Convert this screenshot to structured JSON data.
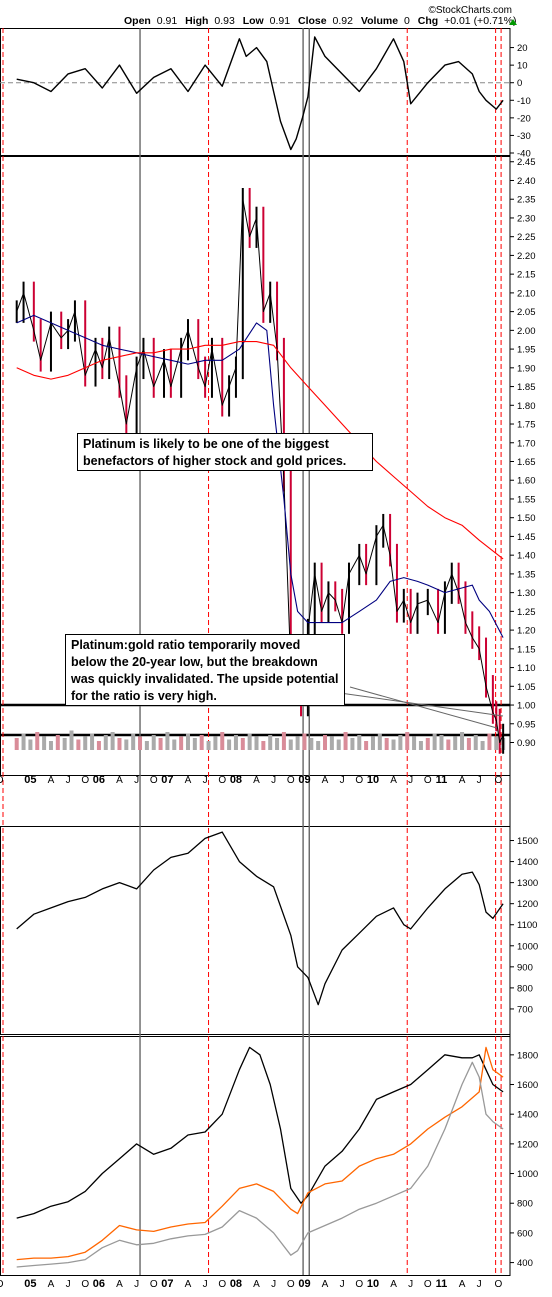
{
  "header": {
    "brand": "©StockCharts.com",
    "open_label": "Open",
    "open": "0.91",
    "high_label": "High",
    "high": "0.93",
    "low_label": "Low",
    "low": "0.91",
    "close_label": "Close",
    "close": "0.92",
    "volume_label": "Volume",
    "volume": "0",
    "chg_label": "Chg",
    "chg": "+0.01 (+0.71%)"
  },
  "annotations": {
    "note1": "Platinum is likely to be one of the biggest benefactors of higher stock and gold prices.",
    "note2": "Platinum:gold ratio temporarily moved below the 20-year low, but the breakdown was quickly invalidated. The upside potential for the ratio is very high."
  },
  "colors": {
    "price_up": "#000000",
    "price_down": "#cc0033",
    "ma_short": "#000080",
    "ma_long": "#ff0000",
    "gold": "#ff6600",
    "silver": "#999999",
    "vline_gray": "#666666",
    "vline_red": "#ff0000"
  },
  "chart_data": [
    {
      "type": "line",
      "panel": "momentum",
      "ylim": [
        -40,
        30
      ],
      "yticks": [
        20,
        10,
        0,
        -10,
        -20,
        -30,
        -40
      ],
      "x": [
        2004.75,
        2005.0,
        2005.25,
        2005.5,
        2005.75,
        2006.0,
        2006.25,
        2006.5,
        2006.75,
        2007.0,
        2007.25,
        2007.5,
        2007.75,
        2008.0,
        2008.1,
        2008.25,
        2008.4,
        2008.5,
        2008.6,
        2008.75,
        2008.83,
        2008.92,
        2009.0,
        2009.1,
        2009.25,
        2009.5,
        2009.75,
        2010.0,
        2010.25,
        2010.4,
        2010.5,
        2010.75,
        2011.0,
        2011.2,
        2011.4,
        2011.5,
        2011.6,
        2011.75,
        2011.85
      ],
      "values": [
        2,
        0,
        -5,
        5,
        8,
        -3,
        10,
        -6,
        3,
        8,
        -5,
        10,
        -2,
        25,
        15,
        20,
        12,
        -5,
        -22,
        -38,
        -32,
        -20,
        -8,
        26,
        15,
        5,
        -5,
        8,
        25,
        12,
        -12,
        0,
        10,
        12,
        5,
        -5,
        -10,
        -15,
        -10
      ]
    },
    {
      "type": "line",
      "panel": "price",
      "series_style": "bars",
      "ylim": [
        0.88,
        2.46
      ],
      "yticks": [
        2.45,
        2.4,
        2.35,
        2.3,
        2.25,
        2.2,
        2.15,
        2.1,
        2.05,
        2.0,
        1.95,
        1.9,
        1.85,
        1.8,
        1.75,
        1.7,
        1.65,
        1.6,
        1.55,
        1.5,
        1.45,
        1.4,
        1.35,
        1.3,
        1.25,
        1.2,
        1.15,
        1.1,
        1.05,
        1.0,
        0.95,
        0.9
      ],
      "x": [
        2004.75,
        2004.85,
        2005.0,
        2005.1,
        2005.25,
        2005.4,
        2005.5,
        2005.6,
        2005.75,
        2005.9,
        2006.0,
        2006.1,
        2006.25,
        2006.35,
        2006.5,
        2006.6,
        2006.75,
        2006.9,
        2007.0,
        2007.15,
        2007.25,
        2007.4,
        2007.5,
        2007.6,
        2007.75,
        2007.85,
        2007.95,
        2008.05,
        2008.15,
        2008.25,
        2008.35,
        2008.45,
        2008.55,
        2008.65,
        2008.75,
        2008.82,
        2008.9,
        2009.0,
        2009.1,
        2009.2,
        2009.3,
        2009.4,
        2009.5,
        2009.6,
        2009.75,
        2009.85,
        2010.0,
        2010.1,
        2010.2,
        2010.3,
        2010.4,
        2010.5,
        2010.6,
        2010.75,
        2010.9,
        2011.0,
        2011.1,
        2011.2,
        2011.3,
        2011.4,
        2011.5,
        2011.6,
        2011.7,
        2011.75,
        2011.8,
        2011.85
      ],
      "values": [
        2.05,
        2.1,
        2.0,
        1.92,
        2.02,
        1.98,
        2.0,
        2.05,
        1.88,
        1.95,
        1.9,
        1.98,
        1.85,
        1.75,
        1.9,
        1.95,
        1.85,
        1.92,
        1.85,
        1.95,
        2.0,
        1.9,
        1.85,
        1.95,
        1.8,
        1.85,
        1.9,
        2.35,
        2.25,
        2.3,
        2.05,
        2.1,
        1.95,
        1.6,
        1.1,
        1.05,
        1.0,
        1.2,
        1.35,
        1.25,
        1.3,
        1.28,
        1.22,
        1.35,
        1.4,
        1.35,
        1.45,
        1.48,
        1.4,
        1.25,
        1.28,
        1.22,
        1.27,
        1.28,
        1.22,
        1.3,
        1.35,
        1.3,
        1.22,
        1.18,
        1.15,
        1.05,
        0.98,
        0.96,
        0.9,
        0.92
      ]
    },
    {
      "type": "line",
      "panel": "price",
      "name": "short-ma",
      "x": [
        2004.75,
        2005.0,
        2005.25,
        2005.5,
        2005.75,
        2006.0,
        2006.25,
        2006.5,
        2006.75,
        2007.0,
        2007.25,
        2007.5,
        2007.75,
        2008.0,
        2008.25,
        2008.4,
        2008.5,
        2008.65,
        2008.75,
        2008.85,
        2009.0,
        2009.25,
        2009.5,
        2009.75,
        2010.0,
        2010.2,
        2010.4,
        2010.6,
        2010.75,
        2011.0,
        2011.2,
        2011.4,
        2011.5,
        2011.65,
        2011.85
      ],
      "values": [
        2.02,
        2.04,
        2.02,
        2.0,
        1.98,
        1.96,
        1.95,
        1.94,
        1.93,
        1.92,
        1.91,
        1.92,
        1.92,
        1.95,
        2.02,
        2.0,
        1.8,
        1.55,
        1.35,
        1.25,
        1.22,
        1.22,
        1.22,
        1.25,
        1.28,
        1.33,
        1.34,
        1.33,
        1.32,
        1.3,
        1.31,
        1.32,
        1.28,
        1.25,
        1.18
      ]
    },
    {
      "type": "line",
      "panel": "price",
      "name": "long-ma",
      "x": [
        2004.75,
        2005.0,
        2005.25,
        2005.5,
        2005.75,
        2006.0,
        2006.25,
        2006.5,
        2006.75,
        2007.0,
        2007.25,
        2007.5,
        2007.75,
        2008.0,
        2008.25,
        2008.5,
        2008.75,
        2009.0,
        2009.25,
        2009.5,
        2009.75,
        2010.0,
        2010.25,
        2010.5,
        2010.75,
        2011.0,
        2011.25,
        2011.5,
        2011.85
      ],
      "values": [
        1.9,
        1.88,
        1.87,
        1.88,
        1.9,
        1.92,
        1.93,
        1.94,
        1.94,
        1.95,
        1.95,
        1.96,
        1.96,
        1.97,
        1.97,
        1.96,
        1.9,
        1.85,
        1.8,
        1.75,
        1.7,
        1.65,
        1.61,
        1.57,
        1.53,
        1.5,
        1.48,
        1.44,
        1.39
      ]
    },
    {
      "type": "bar",
      "panel": "volume",
      "ylim": [
        0,
        100
      ],
      "x": [
        2004.75,
        2004.85,
        2004.95,
        2005.05,
        2005.15,
        2005.25,
        2005.35,
        2005.45,
        2005.55,
        2005.65,
        2005.75,
        2005.85,
        2005.95,
        2006.05,
        2006.15,
        2006.25,
        2006.35,
        2006.45,
        2006.55,
        2006.65,
        2006.75,
        2006.85,
        2006.95,
        2007.05,
        2007.15,
        2007.25,
        2007.35,
        2007.45,
        2007.55,
        2007.65,
        2007.75,
        2007.85,
        2007.95,
        2008.05,
        2008.15,
        2008.25,
        2008.35,
        2008.45,
        2008.55,
        2008.65,
        2008.75,
        2008.85,
        2008.95,
        2009.05,
        2009.15,
        2009.25,
        2009.35,
        2009.45,
        2009.55,
        2009.65,
        2009.75,
        2009.85,
        2009.95,
        2010.05,
        2010.15,
        2010.25,
        2010.35,
        2010.45,
        2010.55,
        2010.65,
        2010.75,
        2010.85,
        2010.95,
        2011.05,
        2011.15,
        2011.25,
        2011.35,
        2011.45,
        2011.55,
        2011.65,
        2011.75,
        2011.85
      ],
      "values": [
        40,
        55,
        35,
        60,
        45,
        30,
        50,
        40,
        65,
        35,
        45,
        55,
        30,
        50,
        60,
        40,
        35,
        55,
        45,
        30,
        50,
        40,
        60,
        35,
        45,
        55,
        40,
        50,
        30,
        45,
        60,
        35,
        50,
        40,
        55,
        45,
        30,
        50,
        40,
        60,
        35,
        45,
        55,
        40,
        30,
        50,
        45,
        35,
        60,
        40,
        50,
        30,
        45,
        55,
        40,
        35,
        50,
        60,
        45,
        30,
        40,
        55,
        50,
        35,
        45,
        60,
        40,
        50,
        30,
        55,
        45,
        40
      ]
    },
    {
      "type": "line",
      "panel": "index",
      "ylim": [
        600,
        1550
      ],
      "yticks": [
        1500,
        1400,
        1300,
        1200,
        1100,
        1000,
        900,
        800,
        700
      ],
      "x": [
        2004.75,
        2005.0,
        2005.25,
        2005.5,
        2005.75,
        2006.0,
        2006.25,
        2006.5,
        2006.75,
        2007.0,
        2007.25,
        2007.5,
        2007.75,
        2008.0,
        2008.25,
        2008.5,
        2008.75,
        2008.85,
        2009.0,
        2009.15,
        2009.25,
        2009.5,
        2009.75,
        2010.0,
        2010.25,
        2010.4,
        2010.5,
        2010.75,
        2011.0,
        2011.25,
        2011.4,
        2011.5,
        2011.6,
        2011.7,
        2011.85
      ],
      "values": [
        1080,
        1150,
        1180,
        1210,
        1230,
        1270,
        1300,
        1270,
        1360,
        1420,
        1440,
        1510,
        1540,
        1400,
        1330,
        1280,
        1050,
        900,
        850,
        720,
        820,
        980,
        1060,
        1140,
        1180,
        1100,
        1080,
        1180,
        1270,
        1340,
        1350,
        1290,
        1160,
        1130,
        1200
      ]
    },
    {
      "type": "line",
      "panel": "metals",
      "ylim": [
        350,
        1900
      ],
      "yticks": [
        1800,
        1600,
        1400,
        1200,
        1000,
        800,
        600,
        400
      ],
      "series": [
        {
          "name": "platinum",
          "x": [
            2004.75,
            2005.0,
            2005.25,
            2005.5,
            2005.75,
            2006.0,
            2006.25,
            2006.5,
            2006.75,
            2007.0,
            2007.25,
            2007.5,
            2007.75,
            2008.0,
            2008.15,
            2008.3,
            2008.45,
            2008.6,
            2008.75,
            2008.9,
            2009.0,
            2009.25,
            2009.5,
            2009.75,
            2010.0,
            2010.25,
            2010.5,
            2010.75,
            2011.0,
            2011.25,
            2011.4,
            2011.5,
            2011.6,
            2011.7,
            2011.85
          ],
          "values": [
            700,
            730,
            780,
            810,
            880,
            1000,
            1100,
            1200,
            1130,
            1170,
            1260,
            1280,
            1400,
            1700,
            1850,
            1800,
            1600,
            1300,
            900,
            800,
            850,
            1050,
            1150,
            1300,
            1500,
            1550,
            1600,
            1700,
            1800,
            1780,
            1780,
            1800,
            1700,
            1600,
            1550
          ]
        },
        {
          "name": "gold",
          "x": [
            2004.75,
            2005.0,
            2005.25,
            2005.5,
            2005.75,
            2006.0,
            2006.25,
            2006.5,
            2006.75,
            2007.0,
            2007.25,
            2007.5,
            2007.75,
            2008.0,
            2008.25,
            2008.5,
            2008.75,
            2008.85,
            2009.0,
            2009.25,
            2009.5,
            2009.75,
            2010.0,
            2010.25,
            2010.5,
            2010.75,
            2011.0,
            2011.25,
            2011.5,
            2011.6,
            2011.7,
            2011.85
          ],
          "values": [
            420,
            430,
            430,
            440,
            470,
            550,
            650,
            620,
            610,
            640,
            660,
            670,
            780,
            900,
            930,
            880,
            760,
            730,
            870,
            930,
            950,
            1050,
            1100,
            1130,
            1200,
            1300,
            1380,
            1450,
            1550,
            1850,
            1700,
            1650
          ]
        },
        {
          "name": "silver",
          "x": [
            2004.75,
            2005.0,
            2005.25,
            2005.5,
            2005.75,
            2006.0,
            2006.25,
            2006.5,
            2006.75,
            2007.0,
            2007.25,
            2007.5,
            2007.75,
            2008.0,
            2008.25,
            2008.5,
            2008.75,
            2008.85,
            2009.0,
            2009.25,
            2009.5,
            2009.75,
            2010.0,
            2010.25,
            2010.5,
            2010.75,
            2011.0,
            2011.25,
            2011.4,
            2011.5,
            2011.6,
            2011.7,
            2011.85
          ],
          "values": [
            370,
            380,
            390,
            400,
            420,
            500,
            550,
            520,
            530,
            560,
            580,
            590,
            640,
            750,
            700,
            600,
            450,
            480,
            600,
            650,
            700,
            760,
            800,
            850,
            900,
            1050,
            1300,
            1600,
            1750,
            1650,
            1400,
            1350,
            1300
          ]
        }
      ]
    },
    {
      "type": "axis",
      "ticks": [
        {
          "x": 2004.5,
          "label": "O"
        },
        {
          "x": 2004.95,
          "label": "05"
        },
        {
          "x": 2005.25,
          "label": "A"
        },
        {
          "x": 2005.5,
          "label": "J"
        },
        {
          "x": 2005.75,
          "label": "O"
        },
        {
          "x": 2005.95,
          "label": "06"
        },
        {
          "x": 2006.25,
          "label": "A"
        },
        {
          "x": 2006.5,
          "label": "J"
        },
        {
          "x": 2006.75,
          "label": "O"
        },
        {
          "x": 2006.95,
          "label": "07"
        },
        {
          "x": 2007.25,
          "label": "A"
        },
        {
          "x": 2007.5,
          "label": "J"
        },
        {
          "x": 2007.75,
          "label": "O"
        },
        {
          "x": 2007.95,
          "label": "08"
        },
        {
          "x": 2008.25,
          "label": "A"
        },
        {
          "x": 2008.5,
          "label": "J"
        },
        {
          "x": 2008.75,
          "label": "O"
        },
        {
          "x": 2008.95,
          "label": "09"
        },
        {
          "x": 2009.25,
          "label": "A"
        },
        {
          "x": 2009.5,
          "label": "J"
        },
        {
          "x": 2009.75,
          "label": "O"
        },
        {
          "x": 2009.95,
          "label": "10"
        },
        {
          "x": 2010.25,
          "label": "A"
        },
        {
          "x": 2010.5,
          "label": "J"
        },
        {
          "x": 2010.75,
          "label": "O"
        },
        {
          "x": 2010.95,
          "label": "11"
        },
        {
          "x": 2011.25,
          "label": "A"
        },
        {
          "x": 2011.5,
          "label": "J"
        },
        {
          "x": 2011.78,
          "label": "O"
        }
      ]
    }
  ]
}
